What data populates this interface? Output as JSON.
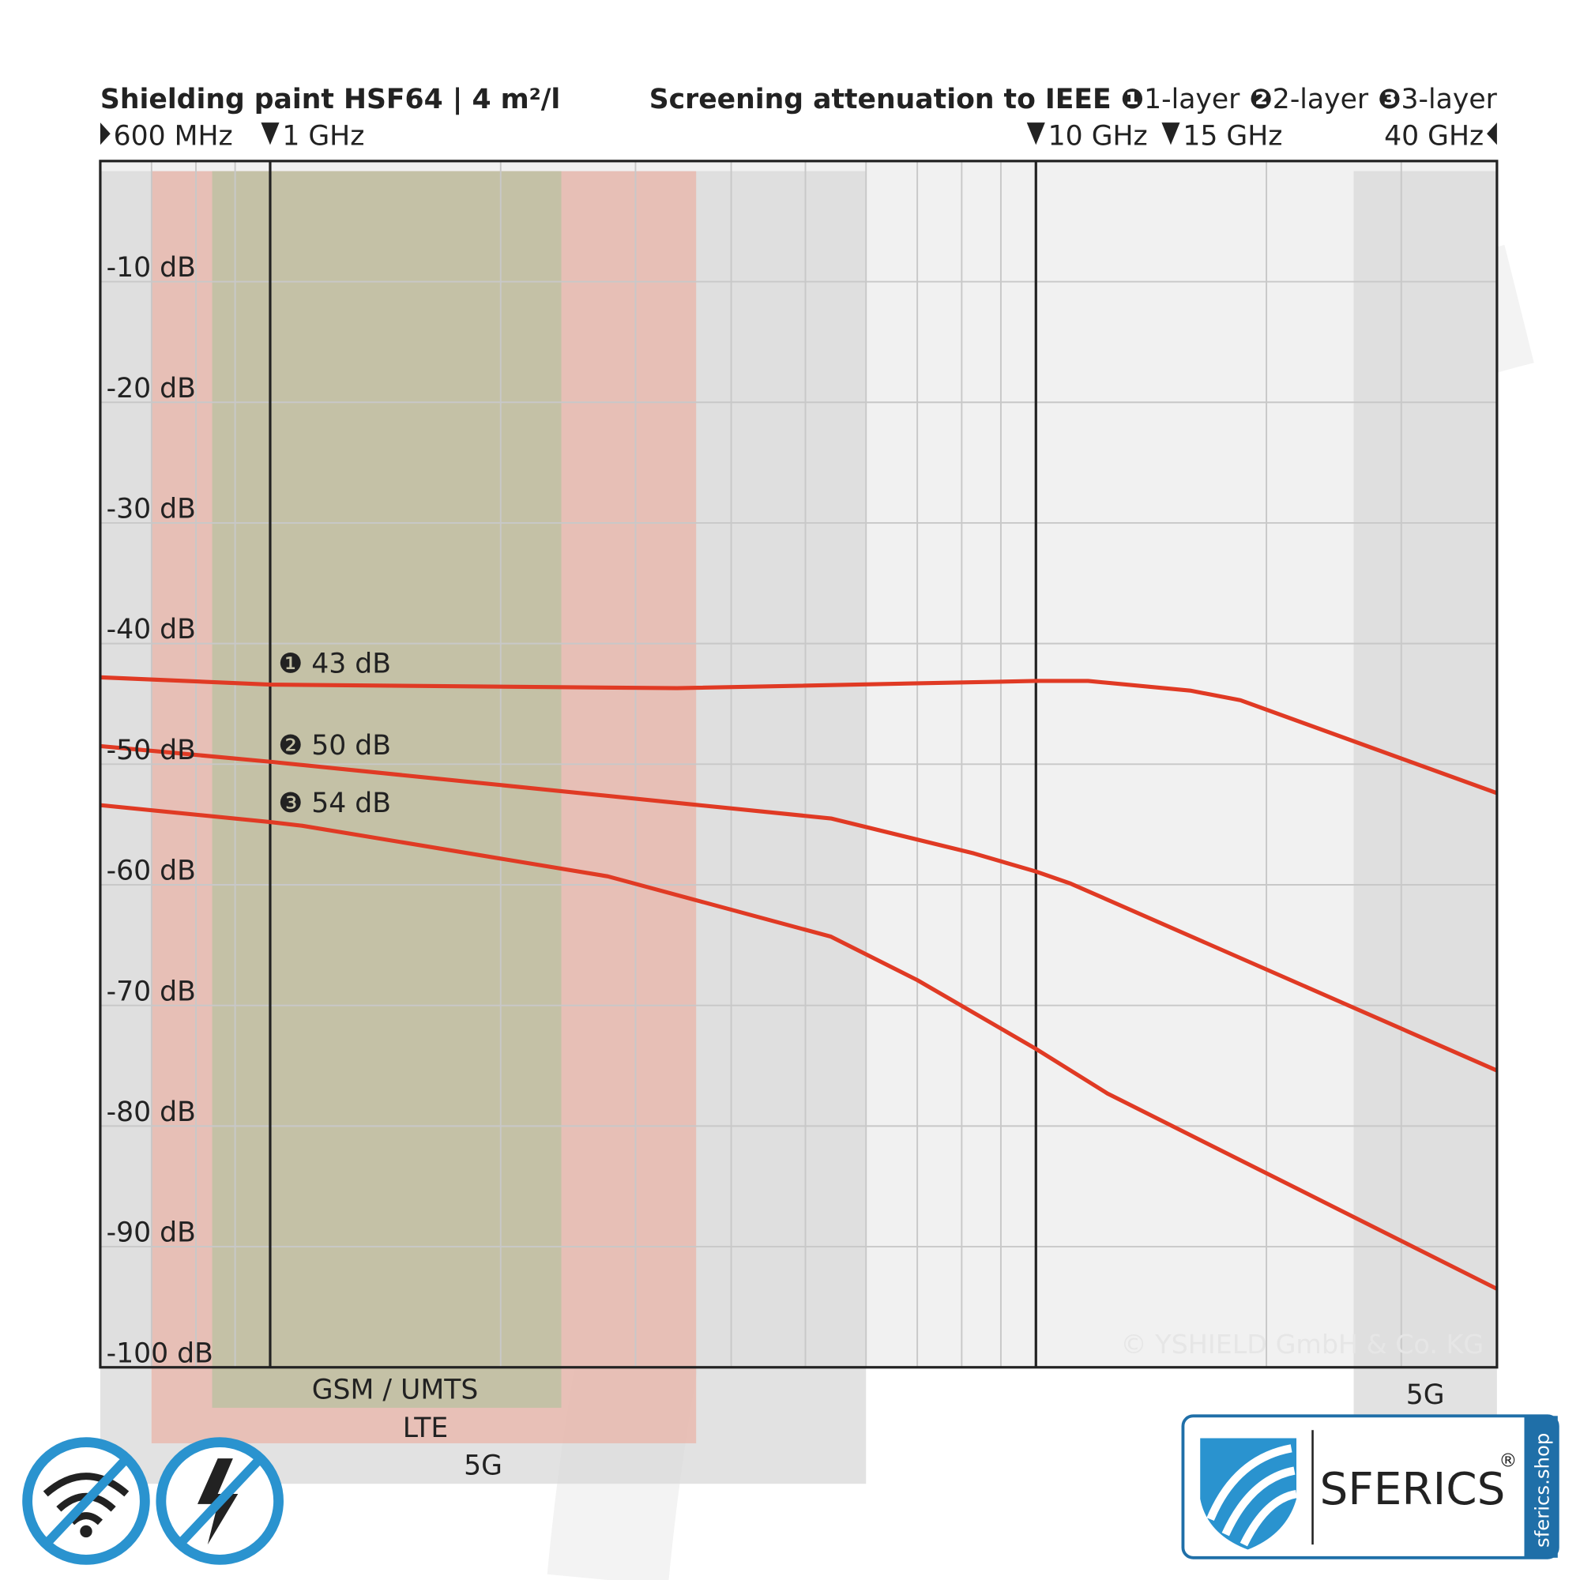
{
  "chart_data": {
    "type": "line",
    "title": "Shielding paint HSF64 | 4 m²/l",
    "subtitle": "Screening attenuation to IEEE",
    "xscale": "log",
    "xlim": [
      0.6,
      40
    ],
    "ylim": [
      0,
      -100
    ],
    "yticks": [
      {
        "value": -10,
        "label": "-10 dB"
      },
      {
        "value": -20,
        "label": "-20 dB"
      },
      {
        "value": -30,
        "label": "-30 dB"
      },
      {
        "value": -40,
        "label": "-40 dB"
      },
      {
        "value": -50,
        "label": "-50 dB"
      },
      {
        "value": -60,
        "label": "-60 dB"
      },
      {
        "value": -70,
        "label": "-70 dB"
      },
      {
        "value": -80,
        "label": "-80 dB"
      },
      {
        "value": -90,
        "label": "-90 dB"
      },
      {
        "value": -100,
        "label": "-100 dB"
      }
    ],
    "xticks": [
      {
        "value": 0.6,
        "label": "600 MHz"
      },
      {
        "value": 1,
        "label": "1 GHz"
      },
      {
        "value": 10,
        "label": "10 GHz"
      },
      {
        "value": 15,
        "label": "15 GHz"
      },
      {
        "value": 40,
        "label": "40 GHz"
      }
    ],
    "xgrid": [
      0.7,
      0.8,
      0.9,
      2,
      3,
      4,
      5,
      6,
      7,
      8,
      9,
      20,
      30
    ],
    "xlines": [
      1,
      10
    ],
    "grid": true,
    "series": [
      {
        "symbol": "❶",
        "name": "1-layer",
        "color": "#e03a24",
        "x": [
          0.6,
          1,
          3.4,
          10,
          11.7,
          15.9,
          18.5,
          40
        ],
        "values": [
          -42.8,
          -43.4,
          -43.7,
          -43.1,
          -43.1,
          -43.9,
          -44.7,
          -52.4
        ]
      },
      {
        "symbol": "❷",
        "name": "2-layer",
        "color": "#e03a24",
        "x": [
          0.6,
          1,
          5.4,
          8.3,
          10,
          11.1,
          40
        ],
        "values": [
          -48.5,
          -49.8,
          -54.5,
          -57.4,
          -58.9,
          -59.9,
          -75.4
        ]
      },
      {
        "symbol": "❸",
        "name": "3-layer",
        "color": "#e03a24",
        "x": [
          0.6,
          1,
          1.1,
          2.76,
          5.4,
          7.0,
          10,
          12.4,
          40
        ],
        "values": [
          -53.4,
          -54.8,
          -55.1,
          -59.3,
          -64.3,
          -67.9,
          -73.6,
          -77.3,
          -93.5
        ]
      }
    ],
    "annotations": [
      "❶ 43 dB",
      "❷ 50 dB",
      "❸ 54 dB"
    ],
    "bands": [
      {
        "label": "5G",
        "from": 0.6,
        "to": 6,
        "color": "#d8d8d8"
      },
      {
        "label": "LTE",
        "from": 0.7,
        "to": 3.6,
        "color": "#e9b4a8"
      },
      {
        "label": "GSM / UMTS",
        "from": 0.84,
        "to": 2.4,
        "color": "#b8c2a0"
      },
      {
        "label": "5G",
        "from": 26,
        "to": 40,
        "color": "#d8d8d8"
      }
    ],
    "copyright": "© YSHIELD GmbH & Co. KG",
    "brand": "SFERICS",
    "registered": "®",
    "website": "sferics.shop"
  }
}
